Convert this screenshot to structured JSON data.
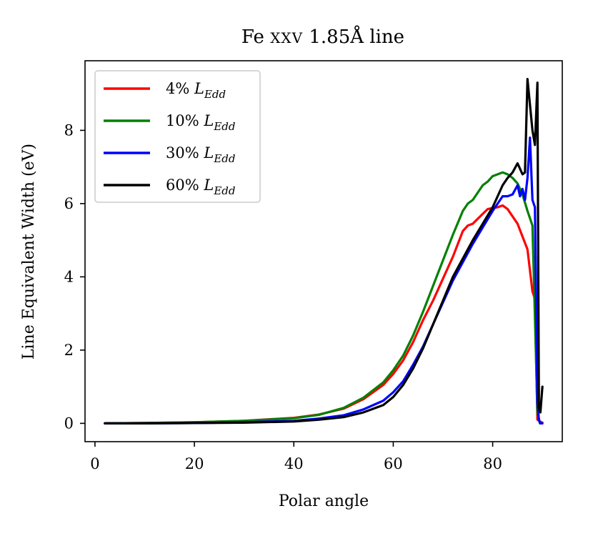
{
  "chart_data": {
    "type": "line",
    "title": "Fe XXV 1.85Å line",
    "title_parts": {
      "element": "Fe",
      "ion": "XXV",
      "rest": "1.85Å line"
    },
    "xlabel": "Polar angle",
    "ylabel": "Line Equivalent Width (eV)",
    "xlim": [
      -2,
      94
    ],
    "ylim": [
      -0.5,
      9.9
    ],
    "xticks": [
      0,
      20,
      40,
      60,
      80
    ],
    "yticks": [
      0,
      2,
      4,
      6,
      8
    ],
    "legend_position": "upper-left",
    "series": [
      {
        "name": "4% L_Edd",
        "label_num": "4%",
        "label_L": "L",
        "label_sub": "Edd",
        "color": "#ff0000",
        "x": [
          2,
          10,
          20,
          30,
          40,
          45,
          50,
          54,
          58,
          60,
          62,
          64,
          66,
          68,
          70,
          72,
          74,
          75,
          76,
          78,
          79,
          80,
          81,
          82,
          83,
          84,
          85,
          86,
          87,
          88,
          88.5,
          89,
          89.5,
          90
        ],
        "y": [
          0,
          0.01,
          0.03,
          0.07,
          0.15,
          0.24,
          0.4,
          0.66,
          1.05,
          1.35,
          1.72,
          2.22,
          2.82,
          3.35,
          3.95,
          4.55,
          5.25,
          5.4,
          5.45,
          5.72,
          5.85,
          5.88,
          5.9,
          5.95,
          5.85,
          5.65,
          5.45,
          5.1,
          4.75,
          3.6,
          3.4,
          0.1,
          0.05,
          0.02
        ]
      },
      {
        "name": "10% L_Edd",
        "label_num": "10%",
        "label_L": "L",
        "label_sub": "Edd",
        "color": "#008000",
        "x": [
          2,
          10,
          20,
          30,
          40,
          45,
          50,
          54,
          58,
          60,
          62,
          64,
          66,
          68,
          70,
          72,
          74,
          75,
          76,
          77,
          78,
          79,
          80,
          81,
          82,
          83,
          84,
          85,
          86,
          87,
          88,
          88.5,
          89,
          89.5
        ],
        "y": [
          0,
          0.01,
          0.03,
          0.07,
          0.14,
          0.23,
          0.42,
          0.7,
          1.12,
          1.45,
          1.85,
          2.4,
          3.05,
          3.75,
          4.45,
          5.15,
          5.8,
          6.0,
          6.1,
          6.3,
          6.5,
          6.6,
          6.75,
          6.8,
          6.85,
          6.8,
          6.7,
          6.55,
          6.25,
          5.8,
          5.4,
          2.9,
          0.3,
          0.0
        ]
      },
      {
        "name": "30% L_Edd",
        "label_num": "30%",
        "label_L": "L",
        "label_sub": "Edd",
        "color": "#0000ff",
        "x": [
          2,
          10,
          20,
          30,
          40,
          45,
          50,
          54,
          58,
          60,
          62,
          64,
          66,
          68,
          70,
          72,
          74,
          76,
          78,
          80,
          82,
          83,
          84,
          85,
          85.5,
          86,
          86.5,
          87,
          87.5,
          88,
          88.5,
          89,
          89.3,
          89.6,
          90
        ],
        "y": [
          0,
          0.0,
          0.01,
          0.03,
          0.07,
          0.13,
          0.22,
          0.38,
          0.62,
          0.85,
          1.15,
          1.6,
          2.1,
          2.7,
          3.3,
          3.9,
          4.4,
          4.9,
          5.35,
          5.8,
          6.2,
          6.2,
          6.25,
          6.5,
          6.2,
          6.4,
          6.1,
          6.7,
          7.8,
          6.1,
          5.9,
          0.6,
          0.1,
          0.0,
          0.0
        ]
      },
      {
        "name": "60% L_Edd",
        "label_num": "60%",
        "label_L": "L",
        "label_sub": "Edd",
        "color": "#000000",
        "x": [
          2,
          10,
          20,
          30,
          40,
          45,
          50,
          54,
          58,
          60,
          62,
          64,
          66,
          68,
          70,
          72,
          74,
          76,
          78,
          80,
          82,
          83,
          84,
          85,
          86,
          86.5,
          87,
          87.5,
          88,
          88.5,
          89,
          89.3,
          89.6,
          90
        ],
        "y": [
          0,
          0.0,
          0.01,
          0.02,
          0.05,
          0.1,
          0.17,
          0.3,
          0.5,
          0.72,
          1.05,
          1.5,
          2.05,
          2.7,
          3.35,
          4.0,
          4.5,
          5.0,
          5.45,
          5.9,
          6.5,
          6.7,
          6.85,
          7.1,
          6.8,
          6.85,
          9.4,
          8.7,
          8.0,
          7.6,
          9.3,
          0.4,
          0.3,
          1.0
        ]
      }
    ]
  }
}
